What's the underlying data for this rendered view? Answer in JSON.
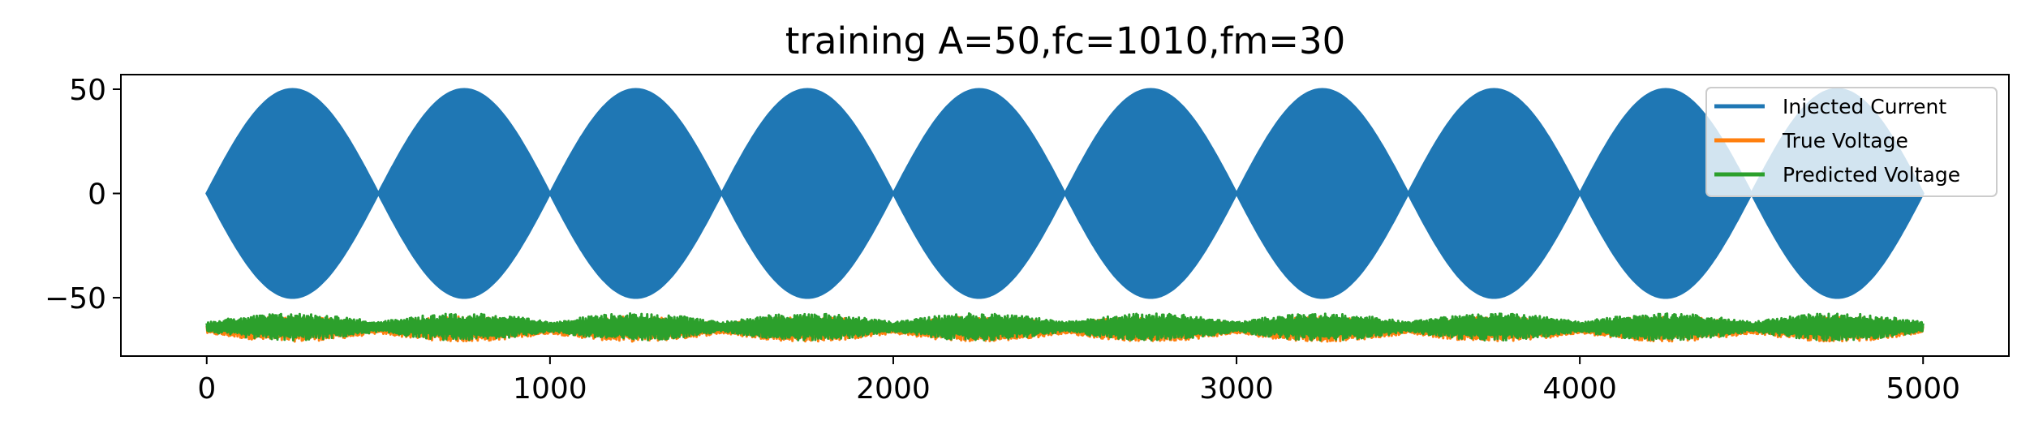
{
  "chart_data": {
    "type": "line",
    "title": "training A=50,fc=1010,fm=30",
    "xlabel": "",
    "ylabel": "",
    "xlim": [
      -250,
      5250
    ],
    "ylim": [
      -78,
      57
    ],
    "x_ticks": [
      0,
      1000,
      2000,
      3000,
      4000,
      5000
    ],
    "x_tick_labels": [
      "0",
      "1000",
      "2000",
      "3000",
      "4000",
      "5000"
    ],
    "y_ticks": [
      50,
      0,
      -50
    ],
    "y_tick_labels": [
      "50",
      "0",
      "−50"
    ],
    "grid": false,
    "legend_position": "top-right",
    "x_range": [
      0,
      5000
    ],
    "series": [
      {
        "name": "Injected Current",
        "color": "#1f77b4",
        "signal": {
          "amplitude": 50,
          "envelope_period": 500,
          "envelope_peaks": [
            250,
            750,
            1250,
            1750,
            2250,
            2750,
            3250,
            3750,
            4250,
            4750
          ],
          "center": 0
        }
      },
      {
        "name": "True Voltage",
        "color": "#ff7f0e",
        "signal": {
          "center": -65,
          "min": -71,
          "max": -59
        }
      },
      {
        "name": "Predicted Voltage",
        "color": "#2ca02c",
        "signal": {
          "center": -64,
          "min": -70,
          "max": -57
        }
      }
    ]
  }
}
